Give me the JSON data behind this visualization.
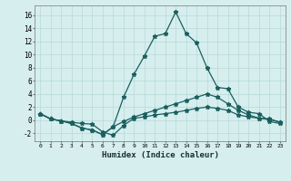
{
  "xlabel": "Humidex (Indice chaleur)",
  "background_color": "#d6eeee",
  "grid_color": "#b8d8d8",
  "line_color": "#1a5f5f",
  "xlim": [
    -0.5,
    23.5
  ],
  "ylim": [
    -3.2,
    17.5
  ],
  "xticks": [
    0,
    1,
    2,
    3,
    4,
    5,
    6,
    7,
    8,
    9,
    10,
    11,
    12,
    13,
    14,
    15,
    16,
    17,
    18,
    19,
    20,
    21,
    22,
    23
  ],
  "yticks": [
    -2,
    0,
    2,
    4,
    6,
    8,
    10,
    12,
    14,
    16
  ],
  "series": [
    {
      "x": [
        0,
        1,
        2,
        3,
        4,
        5,
        6,
        7,
        8,
        9,
        10,
        11,
        12,
        13,
        14,
        15,
        16,
        17,
        18,
        19,
        20,
        21,
        22,
        23
      ],
      "y": [
        1.0,
        0.2,
        -0.1,
        -0.3,
        -0.5,
        -0.6,
        -1.8,
        -2.3,
        -0.8,
        0.3,
        0.5,
        0.8,
        1.0,
        1.2,
        1.5,
        1.8,
        2.0,
        1.8,
        1.5,
        0.8,
        0.5,
        0.3,
        0.2,
        -0.3
      ]
    },
    {
      "x": [
        0,
        1,
        2,
        3,
        4,
        5,
        6,
        7,
        8,
        9,
        10,
        11,
        12,
        13,
        14,
        15,
        16,
        17,
        18,
        19,
        20,
        21,
        22,
        23
      ],
      "y": [
        1.0,
        0.2,
        -0.1,
        -0.5,
        -1.2,
        -1.5,
        -2.2,
        -1.0,
        -0.2,
        0.5,
        1.0,
        1.5,
        2.0,
        2.5,
        3.0,
        3.5,
        4.0,
        3.5,
        2.5,
        1.5,
        0.8,
        0.3,
        0.1,
        -0.3
      ]
    },
    {
      "x": [
        0,
        1,
        2,
        3,
        4,
        5,
        6,
        7,
        8,
        9,
        10,
        11,
        12,
        13,
        14,
        15,
        16,
        17,
        18,
        19,
        20,
        21,
        22,
        23
      ],
      "y": [
        1.0,
        0.2,
        -0.1,
        -0.5,
        -1.2,
        -1.5,
        -2.2,
        -1.0,
        3.5,
        7.0,
        9.8,
        12.8,
        13.2,
        16.5,
        13.2,
        11.8,
        8.0,
        5.0,
        4.8,
        2.0,
        1.2,
        1.0,
        -0.2,
        -0.5
      ]
    }
  ],
  "marker": "*",
  "markersize": 3.5,
  "linewidth": 0.9
}
